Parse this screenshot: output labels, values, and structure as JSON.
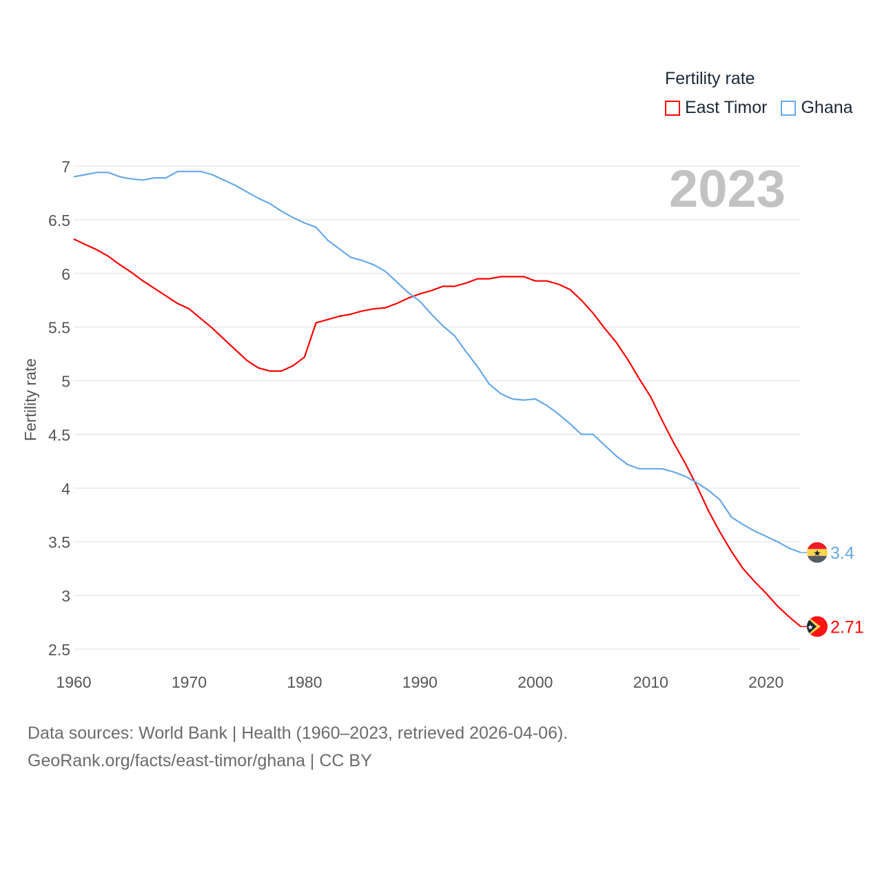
{
  "legend": {
    "title": "Fertility rate",
    "items": [
      {
        "name": "East Timor",
        "color": "#ff0000"
      },
      {
        "name": "Ghana",
        "color": "#66a8ea"
      }
    ]
  },
  "source": {
    "line1": "Data sources: World Bank | Health (1960–2023, retrieved 2026-04-06).",
    "line2": "GeoRank.org/facts/east-timor/ghana | CC BY"
  },
  "chart_data": {
    "type": "line",
    "title": "Fertility rate",
    "year_label": "2023",
    "xlabel": "",
    "ylabel": "Fertility rate",
    "xlim": [
      1960,
      2023
    ],
    "ylim": [
      2.5,
      7
    ],
    "x_ticks": [
      1960,
      1970,
      1980,
      1990,
      2000,
      2010,
      2020
    ],
    "y_ticks": [
      "2.5",
      "3",
      "3.5",
      "4",
      "4.5",
      "5",
      "5.5",
      "6",
      "6.5",
      "7"
    ],
    "grid": true,
    "legend_position": "top-right",
    "x": [
      1960,
      1961,
      1962,
      1963,
      1964,
      1965,
      1966,
      1967,
      1968,
      1969,
      1970,
      1971,
      1972,
      1973,
      1974,
      1975,
      1976,
      1977,
      1978,
      1979,
      1980,
      1981,
      1982,
      1983,
      1984,
      1985,
      1986,
      1987,
      1988,
      1989,
      1990,
      1991,
      1992,
      1993,
      1994,
      1995,
      1996,
      1997,
      1998,
      1999,
      2000,
      2001,
      2002,
      2003,
      2004,
      2005,
      2006,
      2007,
      2008,
      2009,
      2010,
      2011,
      2012,
      2013,
      2014,
      2015,
      2016,
      2017,
      2018,
      2019,
      2020,
      2021,
      2022,
      2023
    ],
    "series": [
      {
        "name": "East Timor",
        "color": "#ff0000",
        "end_label": "2.71",
        "flag": "east-timor-flag",
        "values": [
          6.32,
          6.27,
          6.22,
          6.16,
          6.08,
          6.01,
          5.93,
          5.86,
          5.79,
          5.72,
          5.67,
          5.58,
          5.49,
          5.39,
          5.29,
          5.19,
          5.12,
          5.09,
          5.09,
          5.14,
          5.22,
          5.54,
          5.57,
          5.6,
          5.62,
          5.65,
          5.67,
          5.68,
          5.72,
          5.77,
          5.81,
          5.84,
          5.88,
          5.88,
          5.91,
          5.95,
          5.95,
          5.97,
          5.97,
          5.97,
          5.93,
          5.93,
          5.9,
          5.85,
          5.75,
          5.63,
          5.49,
          5.36,
          5.2,
          5.02,
          4.85,
          4.63,
          4.42,
          4.23,
          4.02,
          3.79,
          3.59,
          3.41,
          3.25,
          3.13,
          3.02,
          2.9,
          2.8,
          2.71
        ]
      },
      {
        "name": "Ghana",
        "color": "#66a8ea",
        "end_label": "3.4",
        "flag": "ghana-flag",
        "values": [
          6.9,
          6.92,
          6.94,
          6.94,
          6.9,
          6.88,
          6.87,
          6.89,
          6.89,
          6.95,
          6.95,
          6.95,
          6.92,
          6.87,
          6.82,
          6.76,
          6.7,
          6.65,
          6.58,
          6.52,
          6.47,
          6.43,
          6.31,
          6.23,
          6.15,
          6.12,
          6.08,
          6.02,
          5.92,
          5.82,
          5.74,
          5.62,
          5.51,
          5.42,
          5.27,
          5.13,
          4.97,
          4.88,
          4.83,
          4.82,
          4.83,
          4.77,
          4.69,
          4.6,
          4.5,
          4.5,
          4.4,
          4.3,
          4.22,
          4.18,
          4.18,
          4.18,
          4.15,
          4.11,
          4.05,
          3.98,
          3.89,
          3.73,
          3.66,
          3.6,
          3.55,
          3.5,
          3.44,
          3.4
        ]
      }
    ]
  }
}
